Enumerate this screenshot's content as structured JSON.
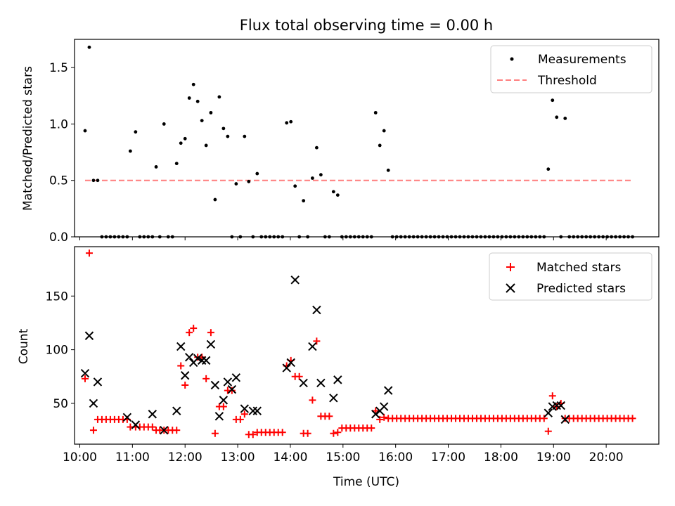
{
  "colors": {
    "measurement": "#000000",
    "threshold": "#ff7f7f",
    "matched": "#ff0000",
    "predicted": "#000000"
  },
  "chart_data": [
    {
      "type": "scatter",
      "title": "Flux total observing time = 0.00 h",
      "xlabel": "",
      "ylabel": "Matched/Predicted stars",
      "xlim": [
        9.9,
        21.0
      ],
      "ylim": [
        0,
        1.75
      ],
      "yticks": [
        0.0,
        0.5,
        1.0,
        1.5
      ],
      "ytick_labels": [
        "0.0",
        "0.5",
        "1.0",
        "1.5"
      ],
      "legend": {
        "position": "upper-right",
        "entries": [
          "Measurements",
          "Threshold"
        ]
      },
      "threshold": {
        "name": "Threshold",
        "value": 0.5,
        "x": [
          10.1,
          20.5
        ]
      },
      "series": [
        {
          "name": "Measurements",
          "x": [
            10.1,
            10.18,
            10.26,
            10.34,
            10.42,
            10.5,
            10.58,
            10.66,
            10.74,
            10.82,
            10.9,
            10.96,
            11.06,
            11.14,
            11.22,
            11.3,
            11.38,
            11.45,
            11.52,
            11.6,
            11.68,
            11.76,
            11.84,
            11.92,
            12.0,
            12.08,
            12.16,
            12.24,
            12.32,
            12.4,
            12.49,
            12.57,
            12.65,
            12.73,
            12.81,
            12.89,
            12.97,
            13.05,
            13.13,
            13.21,
            13.29,
            13.37,
            13.45,
            13.53,
            13.61,
            13.69,
            13.77,
            13.85,
            13.93,
            14.01,
            14.09,
            14.17,
            14.25,
            14.33,
            14.42,
            14.5,
            14.58,
            14.66,
            14.74,
            14.82,
            14.9,
            14.98,
            15.06,
            15.14,
            15.22,
            15.3,
            15.38,
            15.46,
            15.54,
            15.62,
            15.7,
            15.78,
            15.86,
            15.94,
            16.02,
            16.1,
            16.18,
            16.26,
            16.34,
            16.42,
            16.5,
            16.58,
            16.66,
            16.74,
            16.82,
            16.9,
            16.98,
            17.06,
            17.14,
            17.22,
            17.3,
            17.38,
            17.46,
            17.54,
            17.62,
            17.7,
            17.78,
            17.86,
            17.94,
            18.02,
            18.1,
            18.18,
            18.26,
            18.34,
            18.42,
            18.5,
            18.58,
            18.66,
            18.74,
            18.82,
            18.9,
            18.98,
            19.06,
            19.14,
            19.22,
            19.3,
            19.38,
            19.46,
            19.54,
            19.62,
            19.7,
            19.78,
            19.86,
            19.94,
            20.02,
            20.1,
            20.18,
            20.26,
            20.34,
            20.42,
            20.5
          ],
          "y": [
            0.94,
            1.68,
            0.5,
            0.5,
            0.0,
            0.0,
            0.0,
            0.0,
            0.0,
            0.0,
            0.0,
            0.76,
            0.93,
            0.0,
            0.0,
            0.0,
            0.0,
            0.62,
            0.0,
            1.0,
            0.0,
            0.0,
            0.65,
            0.83,
            0.87,
            1.23,
            1.35,
            1.2,
            1.03,
            0.81,
            1.1,
            0.33,
            1.24,
            0.96,
            0.89,
            0.0,
            0.47,
            0.0,
            0.89,
            0.49,
            0.0,
            0.56,
            0.0,
            0.0,
            0.0,
            0.0,
            0.0,
            0.0,
            1.01,
            1.02,
            0.45,
            0.0,
            0.32,
            0.0,
            0.52,
            0.79,
            0.55,
            0.0,
            0.0,
            0.4,
            0.37,
            0.0,
            0.0,
            0.0,
            0.0,
            0.0,
            0.0,
            0.0,
            0.0,
            1.1,
            0.81,
            0.94,
            0.59,
            0.0,
            0.0,
            0.0,
            0.0,
            0.0,
            0.0,
            0.0,
            0.0,
            0.0,
            0.0,
            0.0,
            0.0,
            0.0,
            0.0,
            0.0,
            0.0,
            0.0,
            0.0,
            0.0,
            0.0,
            0.0,
            0.0,
            0.0,
            0.0,
            0.0,
            0.0,
            0.0,
            0.0,
            0.0,
            0.0,
            0.0,
            0.0,
            0.0,
            0.0,
            0.0,
            0.0,
            0.0,
            0.6,
            1.21,
            1.06,
            0.0,
            1.05,
            0.0,
            0.0,
            0.0,
            0.0,
            0.0,
            0.0,
            0.0,
            0.0,
            0.0,
            0.0,
            0.0,
            0.0,
            0.0,
            0.0,
            0.0,
            0.0
          ]
        }
      ]
    },
    {
      "type": "scatter",
      "title": "",
      "xlabel": "Time (UTC)",
      "ylabel": "Count",
      "xlim": [
        9.9,
        21.0
      ],
      "ylim": [
        12,
        196
      ],
      "yticks": [
        50,
        100,
        150
      ],
      "ytick_labels": [
        "50",
        "100",
        "150"
      ],
      "xticks": [
        10,
        11,
        12,
        13,
        14,
        15,
        16,
        17,
        18,
        19,
        20
      ],
      "xtick_labels": [
        "10:00",
        "11:00",
        "12:00",
        "13:00",
        "14:00",
        "15:00",
        "16:00",
        "17:00",
        "18:00",
        "19:00",
        "20:00"
      ],
      "legend": {
        "position": "upper-right",
        "entries": [
          "Matched stars",
          "Predicted stars"
        ]
      },
      "series": [
        {
          "name": "Matched stars",
          "marker": "+",
          "x": [
            10.1,
            10.18,
            10.26,
            10.34,
            10.42,
            10.5,
            10.58,
            10.66,
            10.74,
            10.82,
            10.9,
            10.96,
            11.06,
            11.14,
            11.22,
            11.3,
            11.38,
            11.45,
            11.52,
            11.6,
            11.68,
            11.76,
            11.84,
            11.92,
            12.0,
            12.08,
            12.16,
            12.24,
            12.32,
            12.4,
            12.49,
            12.57,
            12.65,
            12.73,
            12.81,
            12.89,
            12.97,
            13.05,
            13.13,
            13.21,
            13.29,
            13.37,
            13.45,
            13.53,
            13.61,
            13.69,
            13.77,
            13.85,
            13.93,
            14.01,
            14.09,
            14.17,
            14.25,
            14.33,
            14.42,
            14.5,
            14.58,
            14.66,
            14.74,
            14.82,
            14.9,
            14.98,
            15.06,
            15.14,
            15.22,
            15.3,
            15.38,
            15.46,
            15.54,
            15.62,
            15.7,
            15.78,
            15.86,
            15.94,
            16.02,
            16.1,
            16.18,
            16.26,
            16.34,
            16.42,
            16.5,
            16.58,
            16.66,
            16.74,
            16.82,
            16.9,
            16.98,
            17.06,
            17.14,
            17.22,
            17.3,
            17.38,
            17.46,
            17.54,
            17.62,
            17.7,
            17.78,
            17.86,
            17.94,
            18.02,
            18.1,
            18.18,
            18.26,
            18.34,
            18.42,
            18.5,
            18.58,
            18.66,
            18.74,
            18.82,
            18.9,
            18.98,
            19.06,
            19.14,
            19.22,
            19.3,
            19.38,
            19.46,
            19.54,
            19.62,
            19.7,
            19.78,
            19.86,
            19.94,
            20.02,
            20.1,
            20.18,
            20.26,
            20.34,
            20.42,
            20.5
          ],
          "y": [
            73,
            190,
            25,
            35,
            35,
            35,
            35,
            35,
            35,
            35,
            35,
            28,
            28,
            28,
            28,
            28,
            28,
            25,
            25,
            25,
            25,
            25,
            25,
            85,
            67,
            116,
            120,
            93,
            93,
            73,
            116,
            22,
            47,
            47,
            62,
            62,
            35,
            35,
            40,
            21,
            21,
            23,
            23,
            23,
            23,
            23,
            23,
            23,
            85,
            90,
            75,
            75,
            22,
            22,
            53,
            108,
            38,
            38,
            38,
            22,
            23,
            27,
            27,
            27,
            27,
            27,
            27,
            27,
            27,
            43,
            35,
            37,
            36,
            36,
            36,
            36,
            36,
            36,
            36,
            36,
            36,
            36,
            36,
            36,
            36,
            36,
            36,
            36,
            36,
            36,
            36,
            36,
            36,
            36,
            36,
            36,
            36,
            36,
            36,
            36,
            36,
            36,
            36,
            36,
            36,
            36,
            36,
            36,
            36,
            36,
            24,
            57,
            47,
            50,
            36,
            36,
            36,
            36,
            36,
            36,
            36,
            36,
            36,
            36,
            36,
            36,
            36,
            36,
            36,
            36,
            36
          ]
        },
        {
          "name": "Predicted stars",
          "marker": "x",
          "x": [
            10.1,
            10.18,
            10.26,
            10.34,
            10.9,
            11.06,
            11.38,
            11.6,
            11.84,
            11.92,
            12.0,
            12.08,
            12.16,
            12.24,
            12.32,
            12.4,
            12.49,
            12.57,
            12.65,
            12.73,
            12.81,
            12.89,
            12.97,
            13.13,
            13.29,
            13.37,
            13.93,
            14.01,
            14.09,
            14.25,
            14.42,
            14.5,
            14.58,
            14.82,
            14.9,
            15.62,
            15.7,
            15.78,
            15.86,
            18.9,
            18.98,
            19.06,
            19.14,
            19.22
          ],
          "y": [
            78,
            113,
            50,
            70,
            37,
            30,
            40,
            25,
            43,
            103,
            76,
            93,
            88,
            92,
            90,
            90,
            105,
            67,
            38,
            53,
            70,
            63,
            74,
            45,
            43,
            43,
            83,
            88,
            165,
            69,
            103,
            137,
            69,
            55,
            72,
            40,
            43,
            47,
            62,
            41,
            47,
            48,
            48,
            35
          ]
        }
      ]
    }
  ]
}
